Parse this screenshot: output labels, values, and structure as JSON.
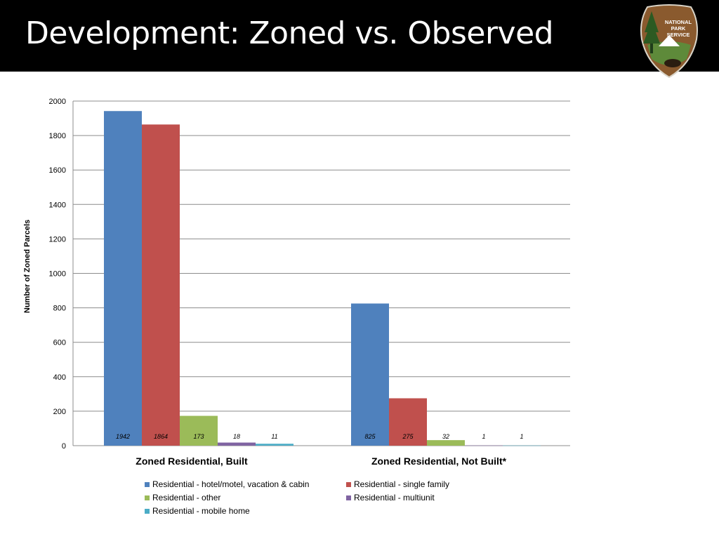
{
  "slide": {
    "title": "Development: Zoned vs. Observed",
    "logo_lines": [
      "NATIONAL",
      "PARK",
      "SERVICE"
    ]
  },
  "colors": {
    "title_bar": "#000000",
    "grid": "#8c8c8c"
  },
  "chart_data": {
    "type": "bar",
    "title": "",
    "xlabel": "",
    "ylabel": "Number of Zoned Parcels",
    "ylim": [
      0,
      2000
    ],
    "yticks": [
      0,
      200,
      400,
      600,
      800,
      1000,
      1200,
      1400,
      1600,
      1800,
      2000
    ],
    "grid": true,
    "legend_position": "bottom",
    "categories": [
      "Zoned Residential, Built",
      "Zoned Residential, Not Built*"
    ],
    "series": [
      {
        "name": "Residential - hotel/motel, vacation & cabin",
        "color": "#4f81bd",
        "values": [
          1942,
          825
        ]
      },
      {
        "name": "Residential - single family",
        "color": "#c0504d",
        "values": [
          1864,
          275
        ]
      },
      {
        "name": "Residential - other",
        "color": "#9bbb59",
        "values": [
          173,
          32
        ]
      },
      {
        "name": "Residential - multiunit",
        "color": "#8064a2",
        "values": [
          18,
          1
        ]
      },
      {
        "name": "Residential - mobile home",
        "color": "#4bacc6",
        "values": [
          11,
          1
        ]
      }
    ]
  }
}
